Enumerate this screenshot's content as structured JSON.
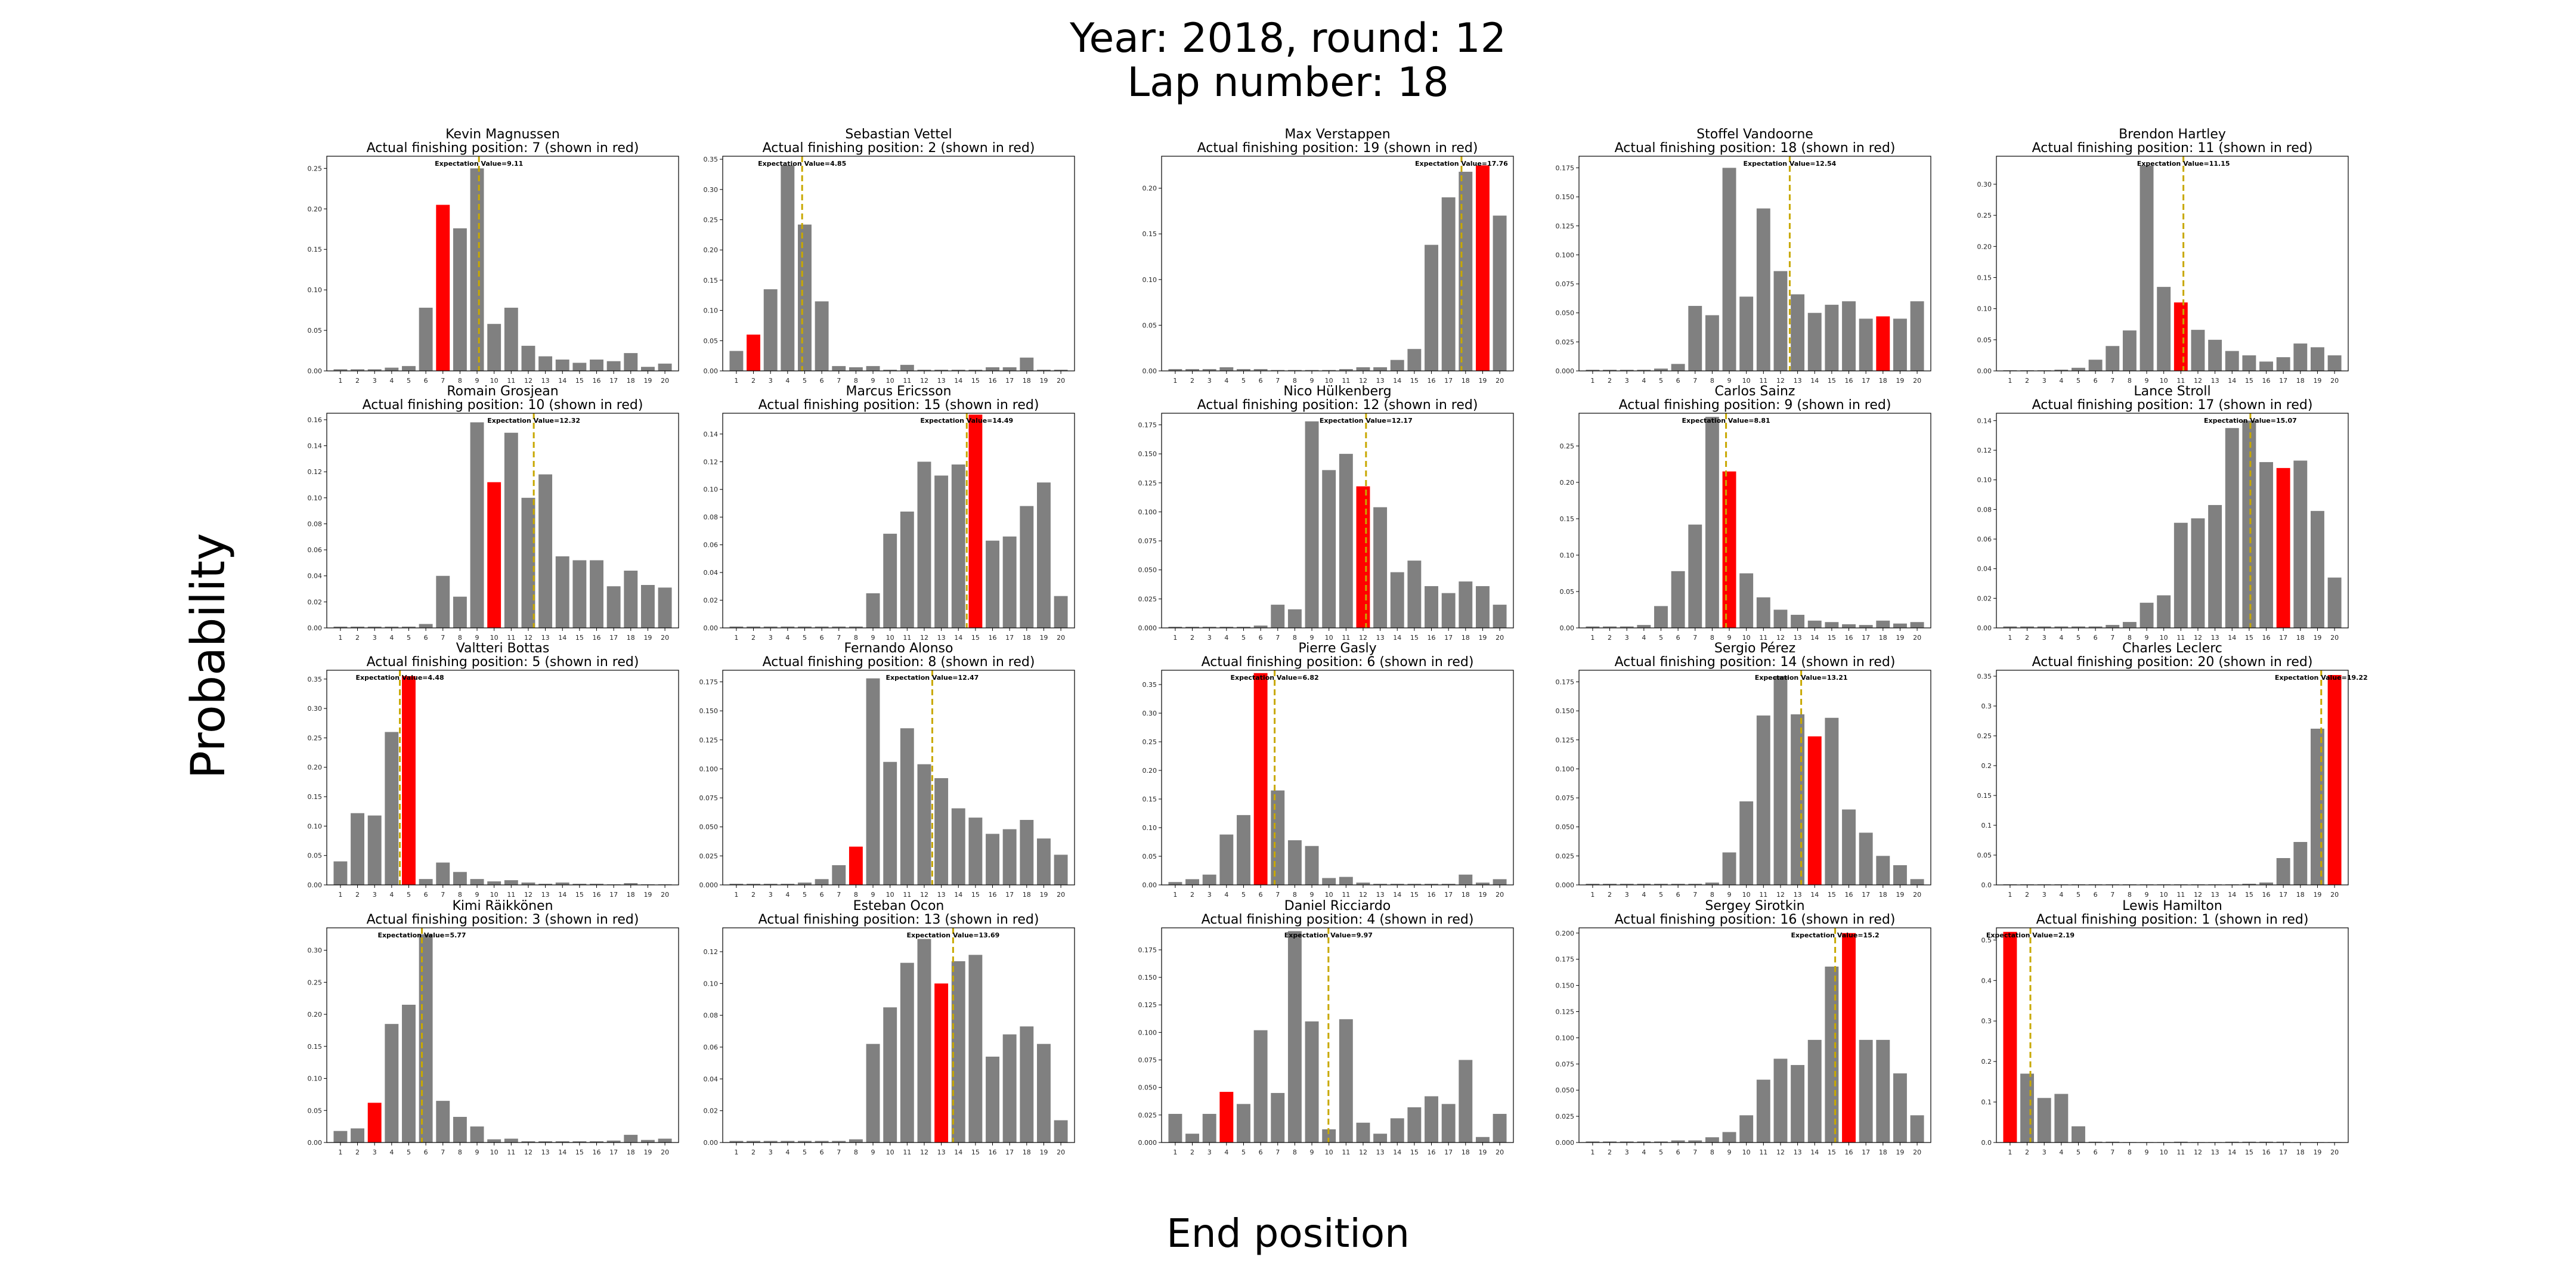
{
  "figure": {
    "title_line1": "Year: 2018, round: 12",
    "title_line2": "Lap number: 18",
    "xlabel": "End position",
    "ylabel": "Probability"
  },
  "colors": {
    "bar": "#808080",
    "actual": "#ff0000",
    "expectation_line": "#c8a800"
  },
  "chart_data": [
    {
      "type": "bar",
      "driver": "Kevin Magnussen",
      "subtitle": "Actual finishing position: 7 (shown in red)",
      "actual": 7,
      "expectation_label": "Expectation Value=9.11",
      "expectation": 9.11,
      "ylim": [
        0,
        0.265
      ],
      "yticks": [
        0,
        0.05,
        0.1,
        0.15,
        0.2,
        0.25
      ],
      "ytick_labels": [
        "0.00",
        "0.05",
        "0.10",
        "0.15",
        "0.20",
        "0.25"
      ],
      "values": [
        0.002,
        0.002,
        0.002,
        0.004,
        0.006,
        0.078,
        0.205,
        0.176,
        0.25,
        0.058,
        0.078,
        0.031,
        0.018,
        0.014,
        0.01,
        0.014,
        0.012,
        0.022,
        0.005,
        0.009
      ]
    },
    {
      "type": "bar",
      "driver": "Sebastian Vettel",
      "subtitle": "Actual finishing position: 2 (shown in red)",
      "actual": 2,
      "expectation_label": "Expectation Value=4.85",
      "expectation": 4.85,
      "ylim": [
        0,
        0.355
      ],
      "yticks": [
        0,
        0.05,
        0.1,
        0.15,
        0.2,
        0.25,
        0.3,
        0.35
      ],
      "ytick_labels": [
        "0.00",
        "0.05",
        "0.10",
        "0.15",
        "0.20",
        "0.25",
        "0.30",
        "0.35"
      ],
      "values": [
        0.033,
        0.06,
        0.135,
        0.34,
        0.242,
        0.115,
        0.008,
        0.006,
        0.008,
        0.002,
        0.01,
        0.002,
        0.002,
        0.002,
        0.002,
        0.006,
        0.006,
        0.022,
        0.002,
        0.002
      ]
    },
    {
      "type": "bar",
      "driver": "Max Verstappen",
      "subtitle": "Actual finishing position: 19 (shown in red)",
      "actual": 19,
      "expectation_label": "Expectation Value=17.76",
      "expectation": 17.76,
      "ylim": [
        0,
        0.235
      ],
      "yticks": [
        0,
        0.05,
        0.1,
        0.15,
        0.2
      ],
      "ytick_labels": [
        "0.00",
        "0.05",
        "0.10",
        "0.15",
        "0.20"
      ],
      "values": [
        0.002,
        0.002,
        0.002,
        0.004,
        0.002,
        0.002,
        0.001,
        0.001,
        0.001,
        0.001,
        0.002,
        0.004,
        0.004,
        0.012,
        0.024,
        0.138,
        0.19,
        0.218,
        0.225,
        0.17
      ]
    },
    {
      "type": "bar",
      "driver": "Stoffel Vandoorne",
      "subtitle": "Actual finishing position: 18 (shown in red)",
      "actual": 18,
      "expectation_label": "Expectation Value=12.54",
      "expectation": 12.54,
      "ylim": [
        0,
        0.185
      ],
      "yticks": [
        0,
        0.025,
        0.05,
        0.075,
        0.1,
        0.125,
        0.15,
        0.175
      ],
      "ytick_labels": [
        "0.000",
        "0.025",
        "0.050",
        "0.075",
        "0.100",
        "0.125",
        "0.150",
        "0.175"
      ],
      "values": [
        0.001,
        0.001,
        0.001,
        0.001,
        0.002,
        0.006,
        0.056,
        0.048,
        0.175,
        0.064,
        0.14,
        0.086,
        0.066,
        0.05,
        0.057,
        0.06,
        0.045,
        0.047,
        0.045,
        0.06
      ]
    },
    {
      "type": "bar",
      "driver": "Brendon Hartley",
      "subtitle": "Actual finishing position: 11 (shown in red)",
      "actual": 11,
      "expectation_label": "Expectation Value=11.15",
      "expectation": 11.15,
      "ylim": [
        0,
        0.345
      ],
      "yticks": [
        0,
        0.05,
        0.1,
        0.15,
        0.2,
        0.25,
        0.3
      ],
      "ytick_labels": [
        "0.00",
        "0.05",
        "0.10",
        "0.15",
        "0.20",
        "0.25",
        "0.30"
      ],
      "values": [
        0.001,
        0.001,
        0.001,
        0.002,
        0.005,
        0.018,
        0.04,
        0.065,
        0.33,
        0.135,
        0.11,
        0.066,
        0.05,
        0.032,
        0.025,
        0.015,
        0.022,
        0.044,
        0.038,
        0.025
      ]
    },
    {
      "type": "bar",
      "driver": "Romain Grosjean",
      "subtitle": "Actual finishing position: 10 (shown in red)",
      "actual": 10,
      "expectation_label": "Expectation Value=12.32",
      "expectation": 12.32,
      "ylim": [
        0,
        0.165
      ],
      "yticks": [
        0,
        0.02,
        0.04,
        0.06,
        0.08,
        0.1,
        0.12,
        0.14,
        0.16
      ],
      "ytick_labels": [
        "0.00",
        "0.02",
        "0.04",
        "0.06",
        "0.08",
        "0.10",
        "0.12",
        "0.14",
        "0.16"
      ],
      "values": [
        0.001,
        0.001,
        0.001,
        0.001,
        0.001,
        0.003,
        0.04,
        0.024,
        0.158,
        0.112,
        0.15,
        0.1,
        0.118,
        0.055,
        0.052,
        0.052,
        0.032,
        0.044,
        0.033,
        0.031
      ]
    },
    {
      "type": "bar",
      "driver": "Marcus Ericsson",
      "subtitle": "Actual finishing position: 15 (shown in red)",
      "actual": 15,
      "expectation_label": "Expectation Value=14.49",
      "expectation": 14.49,
      "ylim": [
        0,
        0.155
      ],
      "yticks": [
        0,
        0.02,
        0.04,
        0.06,
        0.08,
        0.1,
        0.12,
        0.14
      ],
      "ytick_labels": [
        "0.00",
        "0.02",
        "0.04",
        "0.06",
        "0.08",
        "0.10",
        "0.12",
        "0.14"
      ],
      "values": [
        0.001,
        0.001,
        0.001,
        0.001,
        0.001,
        0.001,
        0.001,
        0.001,
        0.025,
        0.068,
        0.084,
        0.12,
        0.11,
        0.118,
        0.154,
        0.063,
        0.066,
        0.088,
        0.105,
        0.023
      ]
    },
    {
      "type": "bar",
      "driver": "Nico Hülkenberg",
      "subtitle": "Actual finishing position: 12 (shown in red)",
      "actual": 12,
      "expectation_label": "Expectation Value=12.17",
      "expectation": 12.17,
      "ylim": [
        0,
        0.185
      ],
      "yticks": [
        0,
        0.025,
        0.05,
        0.075,
        0.1,
        0.125,
        0.15,
        0.175
      ],
      "ytick_labels": [
        "0.000",
        "0.025",
        "0.050",
        "0.075",
        "0.100",
        "0.125",
        "0.150",
        "0.175"
      ],
      "values": [
        0.001,
        0.001,
        0.001,
        0.001,
        0.001,
        0.002,
        0.02,
        0.016,
        0.178,
        0.136,
        0.15,
        0.122,
        0.104,
        0.048,
        0.058,
        0.036,
        0.03,
        0.04,
        0.036,
        0.02
      ]
    },
    {
      "type": "bar",
      "driver": "Carlos Sainz",
      "subtitle": "Actual finishing position: 9 (shown in red)",
      "actual": 9,
      "expectation_label": "Expectation Value=8.81",
      "expectation": 8.81,
      "ylim": [
        0,
        0.295
      ],
      "yticks": [
        0,
        0.05,
        0.1,
        0.15,
        0.2,
        0.25
      ],
      "ytick_labels": [
        "0.00",
        "0.05",
        "0.10",
        "0.15",
        "0.20",
        "0.25"
      ],
      "values": [
        0.002,
        0.002,
        0.002,
        0.004,
        0.03,
        0.078,
        0.142,
        0.29,
        0.215,
        0.075,
        0.042,
        0.025,
        0.018,
        0.01,
        0.008,
        0.005,
        0.004,
        0.01,
        0.006,
        0.008
      ]
    },
    {
      "type": "bar",
      "driver": "Lance Stroll",
      "subtitle": "Actual finishing position: 17 (shown in red)",
      "actual": 17,
      "expectation_label": "Expectation Value=15.07",
      "expectation": 15.07,
      "ylim": [
        0,
        0.145
      ],
      "yticks": [
        0,
        0.02,
        0.04,
        0.06,
        0.08,
        0.1,
        0.12,
        0.14
      ],
      "ytick_labels": [
        "0.00",
        "0.02",
        "0.04",
        "0.06",
        "0.08",
        "0.10",
        "0.12",
        "0.14"
      ],
      "values": [
        0.001,
        0.001,
        0.001,
        0.001,
        0.001,
        0.001,
        0.002,
        0.004,
        0.017,
        0.022,
        0.071,
        0.074,
        0.083,
        0.135,
        0.14,
        0.112,
        0.108,
        0.113,
        0.079,
        0.034
      ]
    },
    {
      "type": "bar",
      "driver": "Valtteri Bottas",
      "subtitle": "Actual finishing position: 5 (shown in red)",
      "actual": 5,
      "expectation_label": "Expectation Value=4.48",
      "expectation": 4.48,
      "ylim": [
        0,
        0.365
      ],
      "yticks": [
        0,
        0.05,
        0.1,
        0.15,
        0.2,
        0.25,
        0.3,
        0.35
      ],
      "ytick_labels": [
        "0.00",
        "0.05",
        "0.10",
        "0.15",
        "0.20",
        "0.25",
        "0.30",
        "0.35"
      ],
      "values": [
        0.04,
        0.122,
        0.118,
        0.26,
        0.355,
        0.01,
        0.038,
        0.022,
        0.01,
        0.006,
        0.008,
        0.004,
        0.002,
        0.004,
        0.002,
        0.002,
        0.001,
        0.003,
        0.001,
        0.001
      ]
    },
    {
      "type": "bar",
      "driver": "Fernando Alonso",
      "subtitle": "Actual finishing position: 8 (shown in red)",
      "actual": 8,
      "expectation_label": "Expectation Value=12.47",
      "expectation": 12.47,
      "ylim": [
        0,
        0.185
      ],
      "yticks": [
        0,
        0.025,
        0.05,
        0.075,
        0.1,
        0.125,
        0.15,
        0.175
      ],
      "ytick_labels": [
        "0.000",
        "0.025",
        "0.050",
        "0.075",
        "0.100",
        "0.125",
        "0.150",
        "0.175"
      ],
      "values": [
        0.001,
        0.001,
        0.001,
        0.001,
        0.002,
        0.005,
        0.017,
        0.033,
        0.178,
        0.106,
        0.135,
        0.104,
        0.092,
        0.066,
        0.058,
        0.044,
        0.048,
        0.056,
        0.04,
        0.026
      ]
    },
    {
      "type": "bar",
      "driver": "Pierre Gasly",
      "subtitle": "Actual finishing position: 6 (shown in red)",
      "actual": 6,
      "expectation_label": "Expectation Value=6.82",
      "expectation": 6.82,
      "ylim": [
        0,
        0.375
      ],
      "yticks": [
        0,
        0.05,
        0.1,
        0.15,
        0.2,
        0.25,
        0.3,
        0.35
      ],
      "ytick_labels": [
        "0.00",
        "0.05",
        "0.10",
        "0.15",
        "0.20",
        "0.25",
        "0.30",
        "0.35"
      ],
      "values": [
        0.005,
        0.01,
        0.018,
        0.088,
        0.122,
        0.37,
        0.165,
        0.078,
        0.068,
        0.012,
        0.014,
        0.004,
        0.002,
        0.002,
        0.002,
        0.002,
        0.002,
        0.018,
        0.004,
        0.01
      ]
    },
    {
      "type": "bar",
      "driver": "Sergio Pérez",
      "subtitle": "Actual finishing position: 14 (shown in red)",
      "actual": 14,
      "expectation_label": "Expectation Value=13.21",
      "expectation": 13.21,
      "ylim": [
        0,
        0.185
      ],
      "yticks": [
        0,
        0.025,
        0.05,
        0.075,
        0.1,
        0.125,
        0.15,
        0.175
      ],
      "ytick_labels": [
        "0.000",
        "0.025",
        "0.050",
        "0.075",
        "0.100",
        "0.125",
        "0.150",
        "0.175"
      ],
      "values": [
        0.001,
        0.001,
        0.001,
        0.001,
        0.001,
        0.001,
        0.001,
        0.002,
        0.028,
        0.072,
        0.146,
        0.18,
        0.147,
        0.128,
        0.144,
        0.065,
        0.045,
        0.025,
        0.017,
        0.005
      ]
    },
    {
      "type": "bar",
      "driver": "Charles Leclerc",
      "subtitle": "Actual finishing position: 20 (shown in red)",
      "actual": 20,
      "expectation_label": "Expectation Value=19.22",
      "expectation": 19.22,
      "ylim": [
        0,
        0.36
      ],
      "yticks": [
        0,
        0.05,
        0.1,
        0.15,
        0.2,
        0.25,
        0.3,
        0.35
      ],
      "ytick_labels": [
        "0.0",
        "0.05",
        "0.1",
        "0.15",
        "0.2",
        "0.25",
        "0.3",
        "0.35"
      ],
      "values": [
        0.001,
        0.001,
        0.001,
        0.001,
        0.001,
        0.001,
        0.001,
        0.001,
        0.001,
        0.001,
        0.001,
        0.001,
        0.001,
        0.001,
        0.002,
        0.004,
        0.045,
        0.072,
        0.262,
        0.352
      ]
    },
    {
      "type": "bar",
      "driver": "Kimi Räikkönen",
      "subtitle": "Actual finishing position: 3 (shown in red)",
      "actual": 3,
      "expectation_label": "Expectation Value=5.77",
      "expectation": 5.77,
      "ylim": [
        0,
        0.335
      ],
      "yticks": [
        0,
        0.05,
        0.1,
        0.15,
        0.2,
        0.25,
        0.3
      ],
      "ytick_labels": [
        "0.00",
        "0.05",
        "0.10",
        "0.15",
        "0.20",
        "0.25",
        "0.30"
      ],
      "values": [
        0.018,
        0.022,
        0.062,
        0.185,
        0.215,
        0.325,
        0.065,
        0.04,
        0.025,
        0.005,
        0.006,
        0.002,
        0.002,
        0.002,
        0.002,
        0.002,
        0.003,
        0.012,
        0.004,
        0.006
      ]
    },
    {
      "type": "bar",
      "driver": "Esteban Ocon",
      "subtitle": "Actual finishing position: 13 (shown in red)",
      "actual": 13,
      "expectation_label": "Expectation Value=13.69",
      "expectation": 13.69,
      "ylim": [
        0,
        0.135
      ],
      "yticks": [
        0,
        0.02,
        0.04,
        0.06,
        0.08,
        0.1,
        0.12
      ],
      "ytick_labels": [
        "0.00",
        "0.02",
        "0.04",
        "0.06",
        "0.08",
        "0.10",
        "0.12"
      ],
      "values": [
        0.001,
        0.001,
        0.001,
        0.001,
        0.001,
        0.001,
        0.001,
        0.002,
        0.062,
        0.085,
        0.113,
        0.128,
        0.1,
        0.114,
        0.118,
        0.054,
        0.068,
        0.073,
        0.062,
        0.014
      ]
    },
    {
      "type": "bar",
      "driver": "Daniel Ricciardo",
      "subtitle": "Actual finishing position: 4 (shown in red)",
      "actual": 4,
      "expectation_label": "Expectation Value=9.97",
      "expectation": 9.97,
      "ylim": [
        0,
        0.195
      ],
      "yticks": [
        0,
        0.025,
        0.05,
        0.075,
        0.1,
        0.125,
        0.15,
        0.175
      ],
      "ytick_labels": [
        "0.000",
        "0.025",
        "0.050",
        "0.075",
        "0.100",
        "0.125",
        "0.150",
        "0.175"
      ],
      "values": [
        0.026,
        0.008,
        0.026,
        0.046,
        0.035,
        0.102,
        0.045,
        0.192,
        0.11,
        0.012,
        0.112,
        0.018,
        0.008,
        0.022,
        0.032,
        0.042,
        0.035,
        0.075,
        0.005,
        0.026
      ]
    },
    {
      "type": "bar",
      "driver": "Sergey Sirotkin",
      "subtitle": "Actual finishing position: 16 (shown in red)",
      "actual": 16,
      "expectation_label": "Expectation Value=15.2",
      "expectation": 15.2,
      "ylim": [
        0,
        0.205
      ],
      "yticks": [
        0,
        0.025,
        0.05,
        0.075,
        0.1,
        0.125,
        0.15,
        0.175,
        0.2
      ],
      "ytick_labels": [
        "0.000",
        "0.025",
        "0.050",
        "0.075",
        "0.100",
        "0.125",
        "0.150",
        "0.175",
        "0.200"
      ],
      "values": [
        0.001,
        0.001,
        0.001,
        0.001,
        0.001,
        0.002,
        0.002,
        0.005,
        0.01,
        0.026,
        0.06,
        0.08,
        0.074,
        0.098,
        0.168,
        0.2,
        0.098,
        0.098,
        0.066,
        0.026
      ]
    },
    {
      "type": "bar",
      "driver": "Lewis Hamilton",
      "subtitle": "Actual finishing position: 1 (shown in red)",
      "actual": 1,
      "expectation_label": "Expectation Value=2.19",
      "expectation": 2.19,
      "ylim": [
        0,
        0.53
      ],
      "yticks": [
        0,
        0.1,
        0.2,
        0.3,
        0.4,
        0.5
      ],
      "ytick_labels": [
        "0.0",
        "0.1",
        "0.2",
        "0.3",
        "0.4",
        "0.5"
      ],
      "values": [
        0.52,
        0.17,
        0.11,
        0.12,
        0.04,
        0.002,
        0.002,
        0.001,
        0.001,
        0.001,
        0.002,
        0.001,
        0.001,
        0.002,
        0.002,
        0.002,
        0.002,
        0.001,
        0.001,
        0.001
      ]
    }
  ]
}
